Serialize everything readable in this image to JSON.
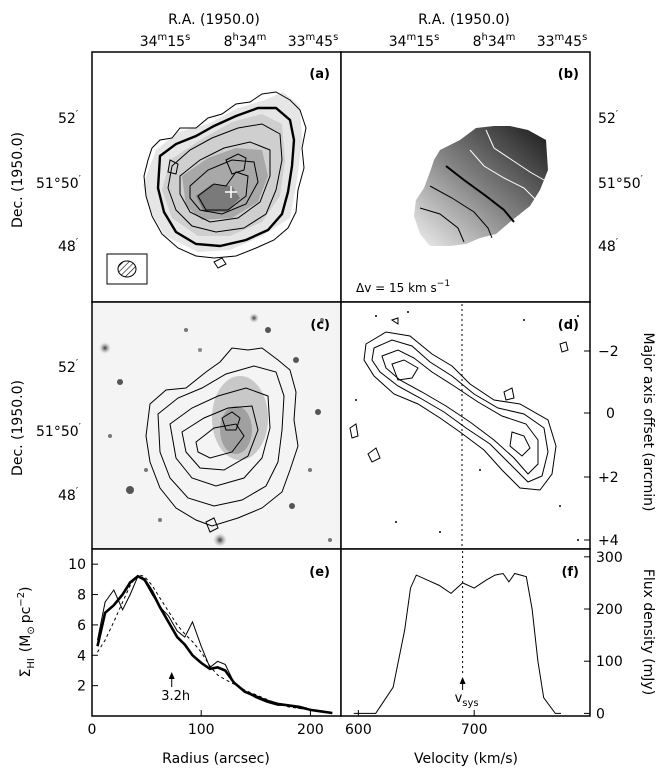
{
  "figure": {
    "top_axis": {
      "title": "R.A. (1950.0)",
      "ticks": [
        {
          "main": "34",
          "sup1": "m",
          "main2": "15",
          "sup2": "s"
        },
        {
          "main": "8",
          "sup1": "h",
          "main2": "34",
          "sup2": "m"
        },
        {
          "main": "33",
          "sup1": "m",
          "main2": "45",
          "sup2": "s"
        }
      ]
    },
    "dec_axis": {
      "title": "Dec. (1950.0)",
      "ticks": [
        {
          "main": "52",
          "sup": "′",
          "tail": ""
        },
        {
          "main": "51°50",
          "sup": "′",
          "tail": ""
        },
        {
          "main": "48",
          "sup": "′",
          "tail": ""
        }
      ]
    },
    "panels": {
      "a": {
        "label": "(a)"
      },
      "b": {
        "label": "(b)",
        "delta_v_prefix": "Δv = 15 km s",
        "delta_v_sup": "−1"
      },
      "c": {
        "label": "(c)"
      },
      "d": {
        "label": "(d)"
      },
      "e": {
        "label": "(e)",
        "annotation": "3.2h"
      },
      "f": {
        "label": "(f)",
        "annotation": "v",
        "annotation_sub": "sys"
      }
    },
    "major_axis": {
      "title": "Major axis offset (arcmin)",
      "ticks": [
        "−2",
        "0",
        "+2",
        "+4"
      ]
    },
    "surface_density_axis": {
      "title_main": "Σ",
      "title_sub": "HI",
      "title_units": "(M",
      "title_sun": "⊙",
      "title_pc": "pc",
      "title_exp": "−2",
      "title_close": ")",
      "ticks": [
        "2",
        "4",
        "6",
        "8",
        "10"
      ]
    },
    "flux_axis": {
      "title": "Flux density (mJy)",
      "ticks": [
        "0",
        "100",
        "200",
        "300"
      ]
    },
    "radius_axis": {
      "title": "Radius (arcsec)",
      "ticks": [
        "0",
        "100",
        "200"
      ]
    },
    "velocity_axis": {
      "title": "Velocity (km/s)",
      "ticks": [
        "600",
        "700"
      ]
    }
  },
  "chart_data": [
    {
      "type": "line",
      "panel": "(e)",
      "xlabel": "Radius (arcsec)",
      "ylabel": "Σ_HI (M⊙ pc^-2)",
      "xlim": [
        0,
        228
      ],
      "ylim": [
        0,
        11
      ],
      "series": [
        {
          "style": "thin",
          "x": [
            5,
            12,
            20,
            28,
            35,
            42,
            48,
            55,
            62,
            70,
            78,
            85,
            92,
            100,
            108,
            115,
            122,
            130,
            140,
            150,
            160,
            170,
            180,
            190,
            200,
            210,
            220
          ],
          "y": [
            5.0,
            7.5,
            8.3,
            7.0,
            8.0,
            9.2,
            8.9,
            8.0,
            7.2,
            6.6,
            5.6,
            5.2,
            6.2,
            4.6,
            3.2,
            3.6,
            3.4,
            2.2,
            1.6,
            1.2,
            0.9,
            0.7,
            0.7,
            0.5,
            0.4,
            0.3,
            0.2
          ]
        },
        {
          "style": "thick",
          "x": [
            5,
            12,
            20,
            28,
            35,
            42,
            48,
            55,
            62,
            70,
            78,
            85,
            92,
            100,
            108,
            115,
            122,
            130,
            140,
            150,
            160,
            170,
            180,
            190,
            200,
            210,
            220
          ],
          "y": [
            4.6,
            6.8,
            7.3,
            8.0,
            8.8,
            9.2,
            9.0,
            8.2,
            7.2,
            6.2,
            5.2,
            4.7,
            4.0,
            3.5,
            3.1,
            3.2,
            3.0,
            2.2,
            1.6,
            1.3,
            1.0,
            0.8,
            0.7,
            0.6,
            0.4,
            0.3,
            0.2
          ]
        },
        {
          "style": "dashed",
          "x": [
            5,
            12,
            20,
            28,
            35,
            42,
            48,
            55,
            62,
            70,
            78,
            85,
            92,
            100,
            108,
            115,
            122,
            130,
            140,
            150,
            160,
            170,
            180,
            190,
            200,
            210,
            220
          ],
          "y": [
            4.2,
            5.0,
            6.2,
            7.5,
            8.6,
            9.3,
            9.2,
            8.6,
            7.8,
            6.9,
            6.0,
            5.4,
            4.9,
            4.2,
            3.3,
            2.7,
            2.4,
            2.1,
            1.7,
            1.4,
            1.1,
            0.8,
            0.6,
            0.5,
            0.4,
            0.3,
            0.2
          ]
        }
      ],
      "annotation_x": 73
    },
    {
      "type": "line",
      "panel": "(f)",
      "xlabel": "Velocity (km/s)",
      "ylabel": "Flux density (mJy)",
      "xlim": [
        585,
        800
      ],
      "ylim": [
        -5,
        315
      ],
      "v_sys": 690,
      "series": [
        {
          "x": [
            596,
            615,
            630,
            640,
            645,
            650,
            660,
            670,
            680,
            690,
            700,
            710,
            718,
            725,
            730,
            735,
            745,
            750,
            755,
            760,
            770,
            775
          ],
          "y": [
            0,
            0,
            50,
            160,
            240,
            265,
            255,
            245,
            230,
            250,
            240,
            255,
            265,
            268,
            252,
            268,
            262,
            200,
            100,
            30,
            0,
            0
          ]
        }
      ]
    }
  ]
}
